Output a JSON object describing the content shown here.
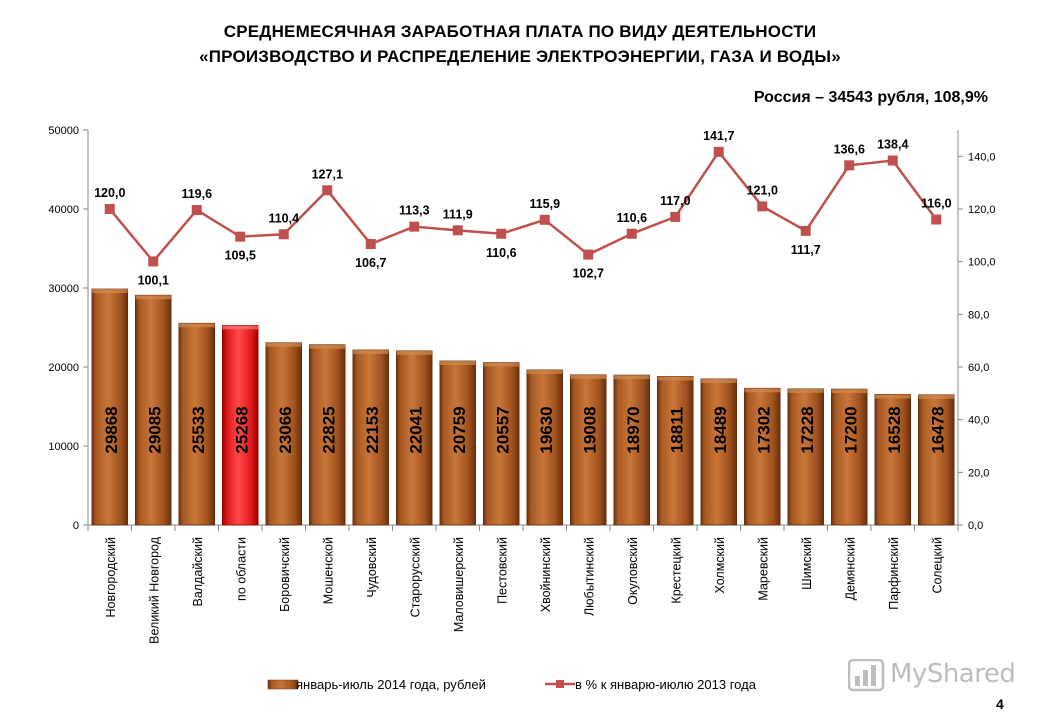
{
  "header": {
    "title_line1": "СРЕДНЕМЕСЯЧНАЯ ЗАРАБОТНАЯ ПЛАТА ПО ВИДУ ДЕЯТЕЛЬНОСТИ",
    "title_line2": "«ПРОИЗВОДСТВО И РАСПРЕДЕЛЕНИЕ ЭЛЕКТРОЭНЕРГИИ, ГАЗА И ВОДЫ»",
    "subtitle": "Россия – 34543 рубля, 108,9%"
  },
  "page_number": "4",
  "watermark": {
    "text": "MyShared",
    "icon": "myshared-logo-icon"
  },
  "colors": {
    "bar": "#a0521e",
    "bar_highlight": "#e01b1b",
    "line": "#c0504d",
    "axis": "#888888"
  },
  "chart_data": {
    "type": "bar",
    "categories": [
      "Новгородский",
      "Великий Новгород",
      "Валдайский",
      "по области",
      "Боровичский",
      "Мошенской",
      "Чудовский",
      "Старорусский",
      "Маловишерский",
      "Пестовский",
      "Хвойнинский",
      "Любытинский",
      "Окуловский",
      "Крестецкий",
      "Холмский",
      "Маревский",
      "Шимский",
      "Демянский",
      "Парфинский",
      "Солецкий"
    ],
    "highlight_category": "по области",
    "series": [
      {
        "name": "январь-июль 2014 года, рублей",
        "type": "bar",
        "axis": "left",
        "values": [
          29868,
          29085,
          25533,
          25268,
          23066,
          22825,
          22153,
          22041,
          20759,
          20557,
          19630,
          19008,
          18970,
          18811,
          18489,
          17302,
          17228,
          17200,
          16528,
          16478
        ],
        "labels": [
          "29868",
          "29085",
          "25533",
          "25268",
          "23066",
          "22825",
          "22153",
          "22041",
          "20759",
          "20557",
          "19630",
          "19008",
          "18970",
          "18811",
          "18489",
          "17302",
          "17228",
          "17200",
          "16528",
          "16478"
        ]
      },
      {
        "name": "в % к январю-июлю 2013 года",
        "type": "line",
        "axis": "right",
        "values": [
          120.0,
          100.1,
          119.6,
          109.5,
          110.4,
          127.1,
          106.7,
          113.3,
          111.9,
          110.6,
          115.9,
          102.7,
          110.6,
          117.0,
          141.7,
          121.0,
          111.7,
          136.6,
          138.4,
          116.0
        ],
        "labels": [
          "120,0",
          "100,1",
          "119,6",
          "109,5",
          "110,4",
          "127,1",
          "106,7",
          "113,3",
          "111,9",
          "110,6",
          "115,9",
          "102,7",
          "110,6",
          "117,0",
          "141,7",
          "121,0",
          "111,7",
          "136,6",
          "138,4",
          "116,0"
        ]
      }
    ],
    "y_left": {
      "ylim": [
        0,
        50000
      ],
      "ticks": [
        0,
        10000,
        20000,
        30000,
        40000,
        50000
      ],
      "tick_labels": [
        "0",
        "10000",
        "20000",
        "30000",
        "40000",
        "50000"
      ]
    },
    "y_right": {
      "ylim": [
        0,
        150
      ],
      "ticks": [
        0,
        20,
        40,
        60,
        80,
        100,
        120,
        140
      ],
      "tick_labels": [
        "0,0",
        "20,0",
        "40,0",
        "60,0",
        "80,0",
        "100,0",
        "120,0",
        "140,0"
      ]
    },
    "legend_position": "bottom",
    "grid": false
  }
}
